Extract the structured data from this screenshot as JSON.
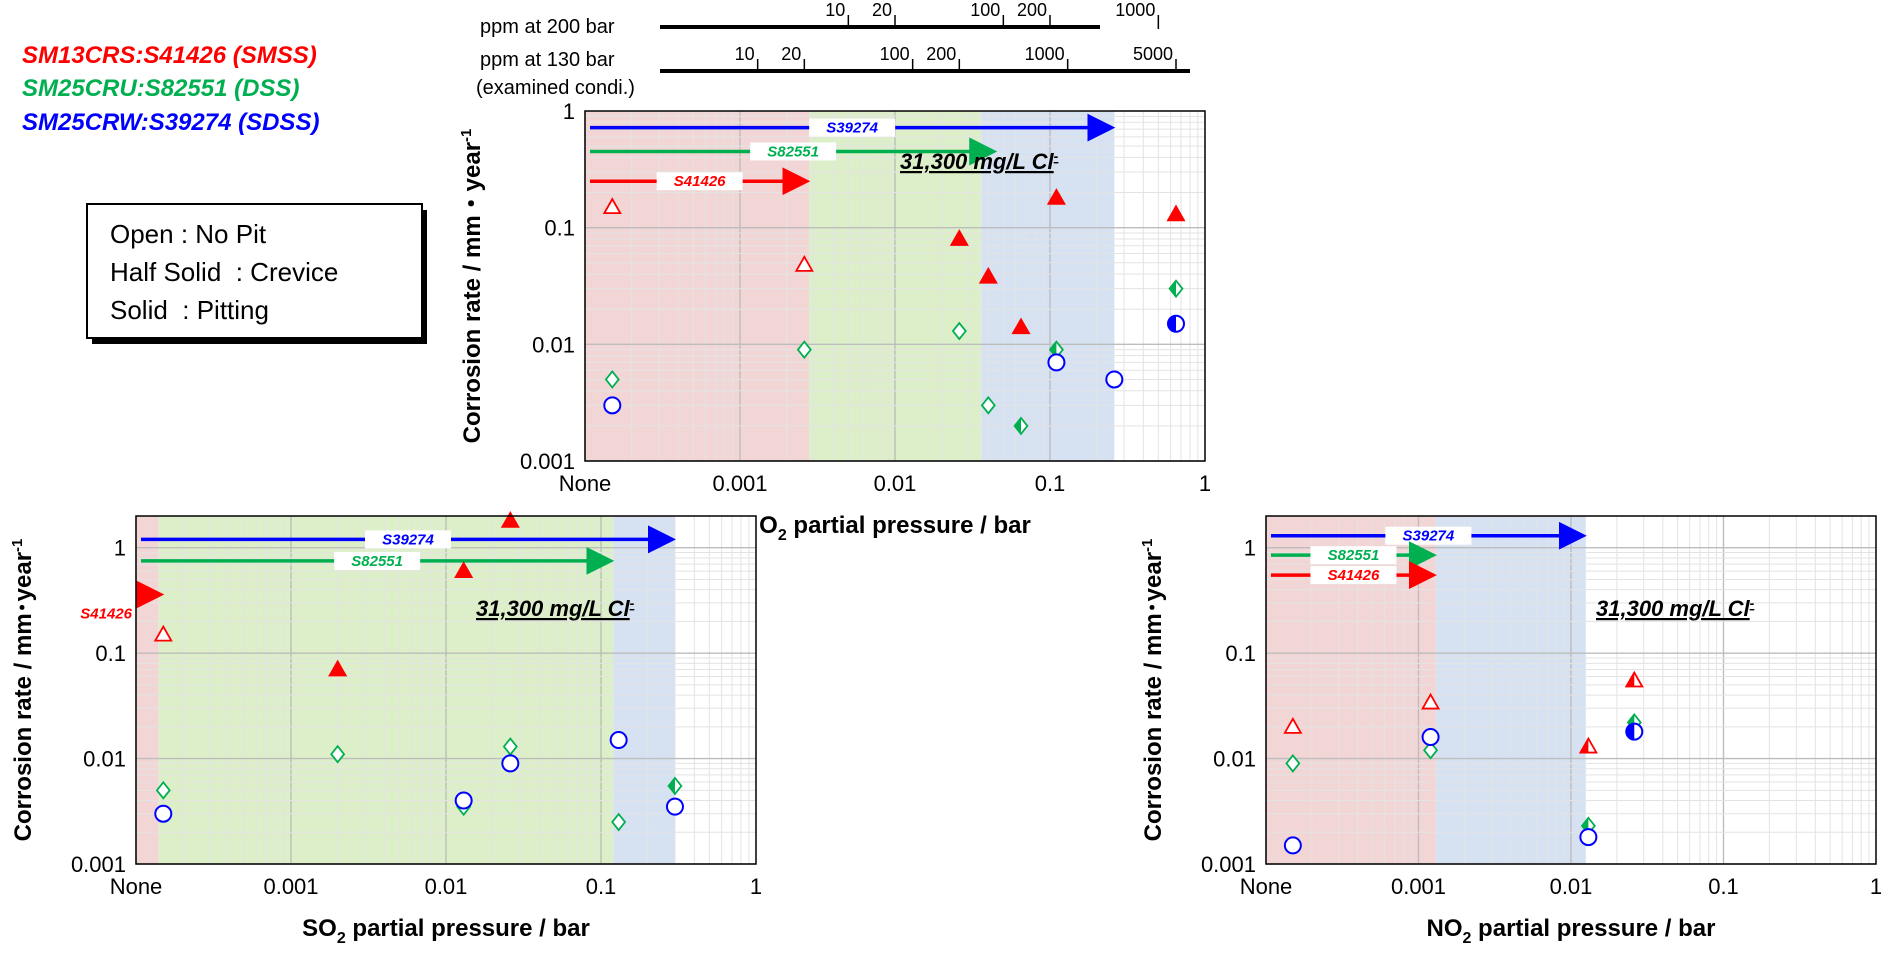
{
  "legend": {
    "materials": [
      {
        "prefix": "SM13CRS:",
        "grade": "S41426 (SMSS)",
        "color": "#ff0000"
      },
      {
        "prefix": "SM25CRU:",
        "grade": "S82551 (DSS)",
        "color": "#00b050"
      },
      {
        "prefix": "SM25CRW:",
        "grade": "S39274 (SDSS)",
        "color": "#0000ff"
      }
    ],
    "symbol_key": [
      "Open : No Pit",
      "Half Solid  : Crevice",
      "Solid  : Pitting"
    ]
  },
  "ppm_scales": {
    "ppm_200_label": "ppm at 200 bar",
    "ppm_200_ticks": [
      {
        "ppm": "10",
        "o2_bar": 0.005
      },
      {
        "ppm": "20",
        "o2_bar": 0.01
      },
      {
        "ppm": "100",
        "o2_bar": 0.05
      },
      {
        "ppm": "200",
        "o2_bar": 0.1
      },
      {
        "ppm": "1000",
        "o2_bar": 0.5
      }
    ],
    "ppm_130_label": "ppm at 130 bar",
    "ppm_130_sublabel": "(examined condi.)",
    "ppm_130_ticks": [
      {
        "ppm": "10",
        "o2_bar": 0.0013
      },
      {
        "ppm": "20",
        "o2_bar": 0.0026
      },
      {
        "ppm": "100",
        "o2_bar": 0.013
      },
      {
        "ppm": "200",
        "o2_bar": 0.026
      },
      {
        "ppm": "1000",
        "o2_bar": 0.13
      },
      {
        "ppm": "5000",
        "o2_bar": 0.65
      }
    ]
  },
  "chart_data": [
    {
      "id": "o2",
      "type": "scatter",
      "title": "",
      "xlabel_main": "O",
      "xlabel_sub": "2",
      "xlabel_rest": " partial pressure / bar",
      "ylabel": "Corrosion rate / mm・year",
      "ylabel_sup": "-1",
      "xscale": "log",
      "yscale": "log",
      "xlim": [
        0.0001,
        1
      ],
      "ylim": [
        0.001,
        1
      ],
      "xticks": [
        {
          "v": 0.0001,
          "label": "None"
        },
        {
          "v": 0.001,
          "label": "0.001"
        },
        {
          "v": 0.01,
          "label": "0.01"
        },
        {
          "v": 0.1,
          "label": "0.1"
        },
        {
          "v": 1,
          "label": "1"
        }
      ],
      "yticks": [
        {
          "v": 0.001,
          "label": "0.001"
        },
        {
          "v": 0.01,
          "label": "0.01"
        },
        {
          "v": 0.1,
          "label": "0.1"
        },
        {
          "v": 1,
          "label": "1"
        }
      ],
      "annotation": "31,300 mg/L Cl",
      "annotation_sup": "-",
      "regions": [
        {
          "from": 0.0001,
          "to": 0.0028,
          "color": "#f2d6d6"
        },
        {
          "from": 0.0028,
          "to": 0.036,
          "color": "#dcefc9"
        },
        {
          "from": 0.036,
          "to": 0.26,
          "color": "#d6e2f2"
        }
      ],
      "arrows": [
        {
          "label": "S39274",
          "from": 0.0001,
          "to": 0.26,
          "y": 0.72,
          "color": "#0000ff"
        },
        {
          "label": "S82551",
          "from": 0.0001,
          "to": 0.045,
          "y": 0.45,
          "color": "#00b050"
        },
        {
          "label": "S41426",
          "from": 0.0001,
          "to": 0.0028,
          "y": 0.25,
          "color": "#ff0000"
        }
      ],
      "series": [
        {
          "name": "S41426 (SMSS)",
          "marker": "triangle",
          "color": "#ff0000",
          "points": [
            {
              "x": 0.00015,
              "y": 0.15,
              "fill": "open"
            },
            {
              "x": 0.0026,
              "y": 0.048,
              "fill": "open"
            },
            {
              "x": 0.026,
              "y": 0.08,
              "fill": "solid"
            },
            {
              "x": 0.04,
              "y": 0.038,
              "fill": "solid"
            },
            {
              "x": 0.065,
              "y": 0.014,
              "fill": "solid"
            },
            {
              "x": 0.11,
              "y": 0.18,
              "fill": "solid"
            },
            {
              "x": 0.65,
              "y": 0.13,
              "fill": "solid"
            }
          ]
        },
        {
          "name": "S82551 (DSS)",
          "marker": "diamond",
          "color": "#00b050",
          "points": [
            {
              "x": 0.00015,
              "y": 0.005,
              "fill": "open"
            },
            {
              "x": 0.0026,
              "y": 0.009,
              "fill": "open"
            },
            {
              "x": 0.026,
              "y": 0.013,
              "fill": "open"
            },
            {
              "x": 0.04,
              "y": 0.003,
              "fill": "open"
            },
            {
              "x": 0.065,
              "y": 0.002,
              "fill": "half"
            },
            {
              "x": 0.11,
              "y": 0.009,
              "fill": "half"
            },
            {
              "x": 0.65,
              "y": 0.03,
              "fill": "half"
            }
          ]
        },
        {
          "name": "S39274 (SDSS)",
          "marker": "circle",
          "color": "#0000ff",
          "points": [
            {
              "x": 0.00015,
              "y": 0.003,
              "fill": "open"
            },
            {
              "x": 0.11,
              "y": 0.007,
              "fill": "open"
            },
            {
              "x": 0.26,
              "y": 0.005,
              "fill": "open"
            },
            {
              "x": 0.65,
              "y": 0.015,
              "fill": "half"
            }
          ]
        }
      ]
    },
    {
      "id": "so2",
      "type": "scatter",
      "title": "",
      "xlabel_main": "SO",
      "xlabel_sub": "2",
      "xlabel_rest": " partial pressure / bar",
      "ylabel": "Corrosion rate / mm･year",
      "ylabel_sup": "-1",
      "xscale": "log",
      "yscale": "log",
      "xlim": [
        0.0001,
        1
      ],
      "ylim": [
        0.001,
        2
      ],
      "xticks": [
        {
          "v": 0.0001,
          "label": "None"
        },
        {
          "v": 0.001,
          "label": "0.001"
        },
        {
          "v": 0.01,
          "label": "0.01"
        },
        {
          "v": 0.1,
          "label": "0.1"
        },
        {
          "v": 1,
          "label": "1"
        }
      ],
      "yticks": [
        {
          "v": 0.001,
          "label": "0.001"
        },
        {
          "v": 0.01,
          "label": "0.01"
        },
        {
          "v": 0.1,
          "label": "0.1"
        },
        {
          "v": 1,
          "label": "1"
        }
      ],
      "annotation": "31,300 mg/L Cl",
      "annotation_sup": "-",
      "regions": [
        {
          "from": 0.0001,
          "to": 0.00014,
          "color": "#f2d6d6"
        },
        {
          "from": 0.00014,
          "to": 0.12,
          "color": "#dcefc9"
        },
        {
          "from": 0.12,
          "to": 0.3,
          "color": "#d6e2f2"
        }
      ],
      "arrows": [
        {
          "label": "S39274",
          "from": 0.0001,
          "to": 0.3,
          "y": 1.2,
          "color": "#0000ff"
        },
        {
          "label": "S82551",
          "from": 0.0001,
          "to": 0.12,
          "y": 0.75,
          "color": "#00b050"
        },
        {
          "label": "S41426",
          "from": 0.0001,
          "to": 0.00015,
          "y": 0.36,
          "color": "#ff0000",
          "label_outside": true
        }
      ],
      "series": [
        {
          "name": "S41426 (SMSS)",
          "marker": "triangle",
          "color": "#ff0000",
          "points": [
            {
              "x": 0.00015,
              "y": 0.15,
              "fill": "open"
            },
            {
              "x": 0.002,
              "y": 0.07,
              "fill": "solid"
            },
            {
              "x": 0.013,
              "y": 0.6,
              "fill": "solid"
            },
            {
              "x": 0.026,
              "y": 1.8,
              "fill": "solid"
            }
          ]
        },
        {
          "name": "S82551 (DSS)",
          "marker": "diamond",
          "color": "#00b050",
          "points": [
            {
              "x": 0.00015,
              "y": 0.005,
              "fill": "open"
            },
            {
              "x": 0.002,
              "y": 0.011,
              "fill": "open"
            },
            {
              "x": 0.013,
              "y": 0.0035,
              "fill": "open"
            },
            {
              "x": 0.026,
              "y": 0.013,
              "fill": "open"
            },
            {
              "x": 0.13,
              "y": 0.0025,
              "fill": "open"
            },
            {
              "x": 0.3,
              "y": 0.0055,
              "fill": "half"
            }
          ]
        },
        {
          "name": "S39274 (SDSS)",
          "marker": "circle",
          "color": "#0000ff",
          "points": [
            {
              "x": 0.00015,
              "y": 0.003,
              "fill": "open"
            },
            {
              "x": 0.013,
              "y": 0.004,
              "fill": "open"
            },
            {
              "x": 0.026,
              "y": 0.009,
              "fill": "open"
            },
            {
              "x": 0.13,
              "y": 0.015,
              "fill": "open"
            },
            {
              "x": 0.3,
              "y": 0.0035,
              "fill": "open"
            }
          ]
        }
      ]
    },
    {
      "id": "no2",
      "type": "scatter",
      "title": "",
      "xlabel_main": "NO",
      "xlabel_sub": "2",
      "xlabel_rest": " partial pressure / bar",
      "ylabel": "Corrosion rate / mm･year",
      "ylabel_sup": "-1",
      "xscale": "log",
      "yscale": "log",
      "xlim": [
        0.0001,
        1
      ],
      "ylim": [
        0.001,
        2
      ],
      "xticks": [
        {
          "v": 0.0001,
          "label": "None"
        },
        {
          "v": 0.001,
          "label": "0.001"
        },
        {
          "v": 0.01,
          "label": "0.01"
        },
        {
          "v": 0.1,
          "label": "0.1"
        },
        {
          "v": 1,
          "label": "1"
        }
      ],
      "yticks": [
        {
          "v": 0.001,
          "label": "0.001"
        },
        {
          "v": 0.01,
          "label": "0.01"
        },
        {
          "v": 0.1,
          "label": "0.1"
        },
        {
          "v": 1,
          "label": "1"
        }
      ],
      "annotation": "31,300 mg/L Cl",
      "annotation_sup": "-",
      "regions": [
        {
          "from": 0.0001,
          "to": 0.0013,
          "color": "#f2d6d6"
        },
        {
          "from": 0.0013,
          "to": 0.0125,
          "color": "#d6e2f2"
        }
      ],
      "arrows": [
        {
          "label": "S39274",
          "from": 0.0001,
          "to": 0.0125,
          "y": 1.3,
          "color": "#0000ff"
        },
        {
          "label": "S82551",
          "from": 0.0001,
          "to": 0.0013,
          "y": 0.85,
          "color": "#00b050"
        },
        {
          "label": "S41426",
          "from": 0.0001,
          "to": 0.0013,
          "y": 0.55,
          "color": "#ff0000"
        }
      ],
      "series": [
        {
          "name": "S41426 (SMSS)",
          "marker": "triangle",
          "color": "#ff0000",
          "points": [
            {
              "x": 0.00015,
              "y": 0.02,
              "fill": "open"
            },
            {
              "x": 0.0012,
              "y": 0.034,
              "fill": "open"
            },
            {
              "x": 0.013,
              "y": 0.013,
              "fill": "half"
            },
            {
              "x": 0.026,
              "y": 0.055,
              "fill": "half"
            }
          ]
        },
        {
          "name": "S82551 (DSS)",
          "marker": "diamond",
          "color": "#00b050",
          "points": [
            {
              "x": 0.00015,
              "y": 0.009,
              "fill": "open"
            },
            {
              "x": 0.0012,
              "y": 0.012,
              "fill": "open"
            },
            {
              "x": 0.013,
              "y": 0.0023,
              "fill": "half"
            },
            {
              "x": 0.026,
              "y": 0.022,
              "fill": "half"
            }
          ]
        },
        {
          "name": "S39274 (SDSS)",
          "marker": "circle",
          "color": "#0000ff",
          "points": [
            {
              "x": 0.00015,
              "y": 0.0015,
              "fill": "open"
            },
            {
              "x": 0.0012,
              "y": 0.016,
              "fill": "open"
            },
            {
              "x": 0.013,
              "y": 0.0018,
              "fill": "open"
            },
            {
              "x": 0.026,
              "y": 0.018,
              "fill": "half"
            }
          ]
        }
      ]
    }
  ]
}
